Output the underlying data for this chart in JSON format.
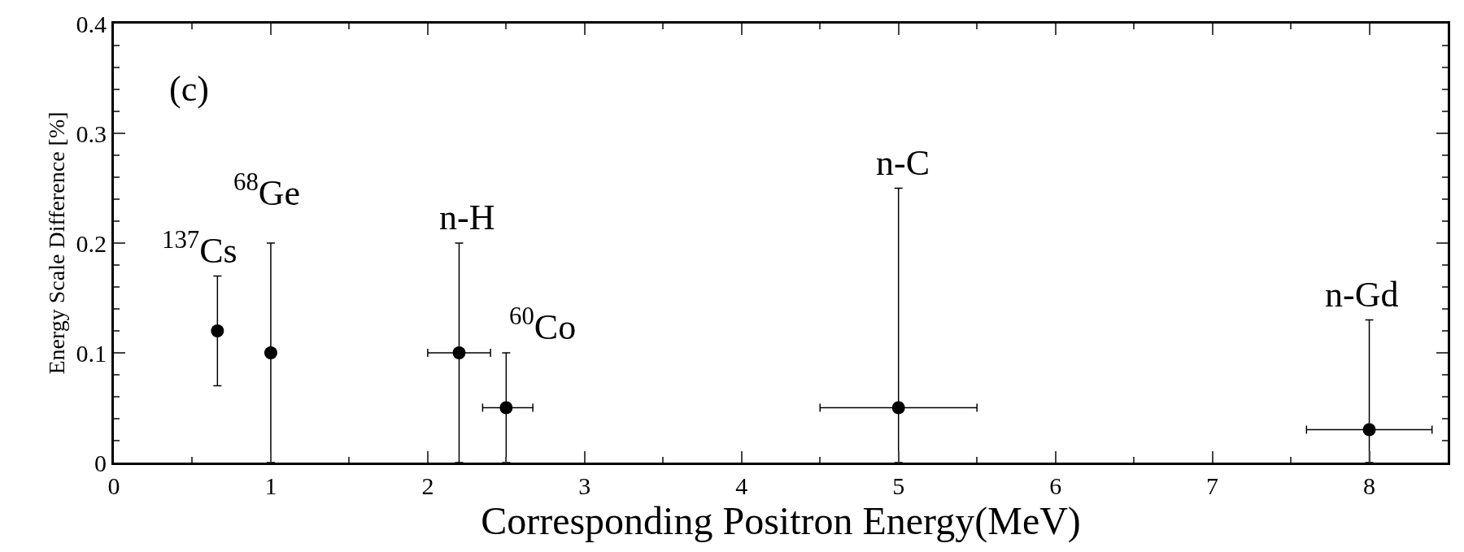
{
  "chart_data": {
    "type": "scatter",
    "xlabel": "Corresponding Positron Energy(MeV)",
    "ylabel": "Energy Scale Difference [%]",
    "x": [
      0.66,
      1.0,
      2.2,
      2.5,
      5.0,
      8.0
    ],
    "values": [
      0.12,
      0.1,
      0.1,
      0.05,
      0.05,
      0.03
    ],
    "errors": [
      [
        0.07,
        0.17
      ],
      [
        0,
        0.2
      ],
      [
        0,
        0.2
      ],
      [
        0,
        0.1
      ],
      [
        0,
        0.25
      ],
      [
        0,
        0.13
      ]
    ],
    "xerrors": [
      null,
      null,
      [
        2.0,
        2.4
      ],
      [
        2.35,
        2.67
      ],
      [
        4.5,
        5.5
      ],
      [
        7.6,
        8.4
      ]
    ],
    "color": "#000000",
    "marker": "circle",
    "xlim": [
      0,
      8.5
    ],
    "xticks": [
      0,
      1,
      2,
      3,
      4,
      5,
      6,
      7,
      8
    ],
    "ylim": [
      0,
      0.4
    ],
    "yticks": [
      0,
      0.1,
      0.2,
      0.3,
      0.4
    ],
    "legend": false,
    "annotations": [
      "$^{137}$Cs",
      "$^{68}$Ge",
      "n-H",
      "$^{60}$Co",
      "n-C",
      "n-Gd",
      "(c)"
    ]
  }
}
